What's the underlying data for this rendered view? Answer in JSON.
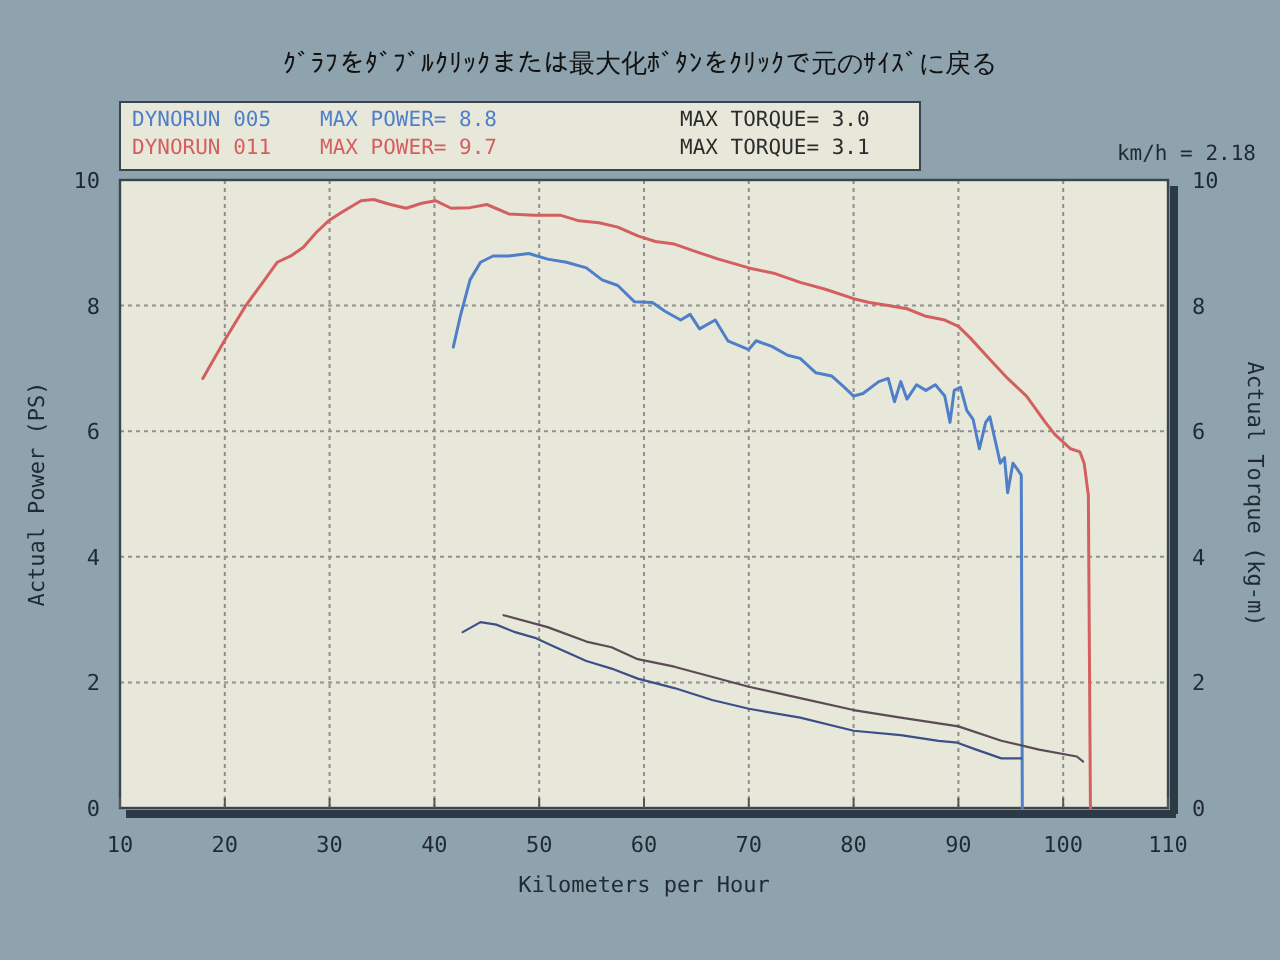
{
  "chart_data": {
    "type": "line",
    "subtitle": "ｸﾞﾗﾌをﾀﾞﾌﾞﾙｸﾘｯｸまたは最大化ﾎﾞﾀﾝをｸﾘｯｸで元のｻｲｽﾞに戻る",
    "xlabel": "Kilometers per Hour",
    "ylabel": "Actual Power (PS)",
    "y2label": "Actual Torque (kg-m)",
    "xlim": [
      10,
      110
    ],
    "xticks": [
      10,
      20,
      30,
      40,
      50,
      60,
      70,
      80,
      90,
      100,
      110
    ],
    "ylim": [
      0,
      10
    ],
    "yticks": [
      0,
      2,
      4,
      6,
      8,
      10
    ],
    "y2lim": [
      0,
      10
    ],
    "y2ticks": [
      0,
      2,
      4,
      6,
      8,
      10
    ],
    "grid": true,
    "legend": "top left",
    "annotations": [
      "km/h = 2.18",
      "MAX POWER= 8.8",
      "MAX TORQUE= 3.0",
      "MAX POWER= 9.7",
      "MAX TORQUE= 3.1"
    ],
    "series": [
      {
        "name": "DYNORUN 005",
        "color": "#4f7fc9",
        "x": [
          41.8,
          42.5,
          43.4,
          44.4,
          45.6,
          47.1,
          49,
          50.8,
          52.6,
          54.5,
          56,
          57.5,
          59.1,
          60.8,
          62,
          63.5,
          64.4,
          65.3,
          66.8,
          68,
          70,
          70.7,
          72.2,
          73.7,
          74.9,
          76.4,
          77.9,
          79.1,
          80,
          80.9,
          82.4,
          83.3,
          83.9,
          84.5,
          85.1,
          86,
          86.9,
          87.8,
          88.7,
          89.2,
          89.6,
          90.2,
          90.8,
          91.4,
          92,
          92.6,
          93,
          93.5,
          94,
          94.4,
          94.7,
          95.2,
          95.6,
          96,
          96.1
        ],
        "values": [
          7.34,
          7.85,
          8.41,
          8.69,
          8.79,
          8.79,
          8.83,
          8.74,
          8.69,
          8.6,
          8.41,
          8.32,
          8.06,
          8.05,
          7.91,
          7.77,
          7.86,
          7.63,
          7.77,
          7.44,
          7.3,
          7.44,
          7.35,
          7.21,
          7.16,
          6.93,
          6.88,
          6.7,
          6.56,
          6.6,
          6.79,
          6.84,
          6.47,
          6.79,
          6.51,
          6.74,
          6.65,
          6.74,
          6.56,
          6.14,
          6.65,
          6.7,
          6.33,
          6.19,
          5.72,
          6.14,
          6.23,
          5.86,
          5.49,
          5.58,
          5.02,
          5.49,
          5.4,
          5.3,
          0
        ]
      },
      {
        "name": "DYNORUN 011",
        "color": "#d3605f",
        "x": [
          17.9,
          20.1,
          22,
          23.8,
          25,
          26.3,
          27.5,
          28.7,
          29.9,
          31.2,
          33,
          34.2,
          35.8,
          37.3,
          38.8,
          40.1,
          41.6,
          43.4,
          45,
          47.1,
          49.5,
          52,
          53.8,
          55.7,
          57.5,
          59.4,
          61.1,
          62.9,
          65.3,
          67.1,
          70,
          72.5,
          74.9,
          77.3,
          80,
          81.5,
          83.3,
          85.1,
          86.9,
          88.7,
          90,
          91.1,
          92.9,
          94.7,
          96.5,
          98.3,
          99.2,
          100.7,
          101.6,
          102,
          102.4,
          102.6
        ],
        "values": [
          6.84,
          7.48,
          8.0,
          8.41,
          8.69,
          8.79,
          8.93,
          9.16,
          9.35,
          9.49,
          9.67,
          9.69,
          9.61,
          9.55,
          9.63,
          9.67,
          9.55,
          9.56,
          9.61,
          9.46,
          9.44,
          9.44,
          9.35,
          9.32,
          9.25,
          9.11,
          9.02,
          8.98,
          8.84,
          8.74,
          8.6,
          8.51,
          8.37,
          8.26,
          8.11,
          8.05,
          8.0,
          7.95,
          7.83,
          7.77,
          7.67,
          7.49,
          7.16,
          6.84,
          6.56,
          6.14,
          5.95,
          5.72,
          5.67,
          5.49,
          4.98,
          0
        ]
      },
      {
        "color": "#3d4f86",
        "axis": "y2",
        "x": [
          42.7,
          44.4,
          45.9,
          47.7,
          49.6,
          51.4,
          54.5,
          56.9,
          59.4,
          62.9,
          66.5,
          70,
          74.9,
          80,
          84.5,
          88.1,
          89.9,
          91.7,
          94.1,
          96
        ],
        "values": [
          2.8,
          2.96,
          2.92,
          2.8,
          2.71,
          2.57,
          2.34,
          2.22,
          2.06,
          1.91,
          1.72,
          1.58,
          1.44,
          1.23,
          1.16,
          1.07,
          1.04,
          0.93,
          0.79,
          0.79
        ]
      },
      {
        "color": "#5b4b58",
        "axis": "y2",
        "x": [
          46.6,
          50.8,
          54.5,
          56.9,
          59.4,
          62.9,
          70,
          74.9,
          80,
          84.5,
          90,
          94.1,
          97.7,
          101.3,
          101.9
        ],
        "values": [
          3.07,
          2.88,
          2.65,
          2.56,
          2.37,
          2.25,
          1.93,
          1.75,
          1.56,
          1.44,
          1.3,
          1.07,
          0.93,
          0.82,
          0.74
        ]
      }
    ]
  }
}
